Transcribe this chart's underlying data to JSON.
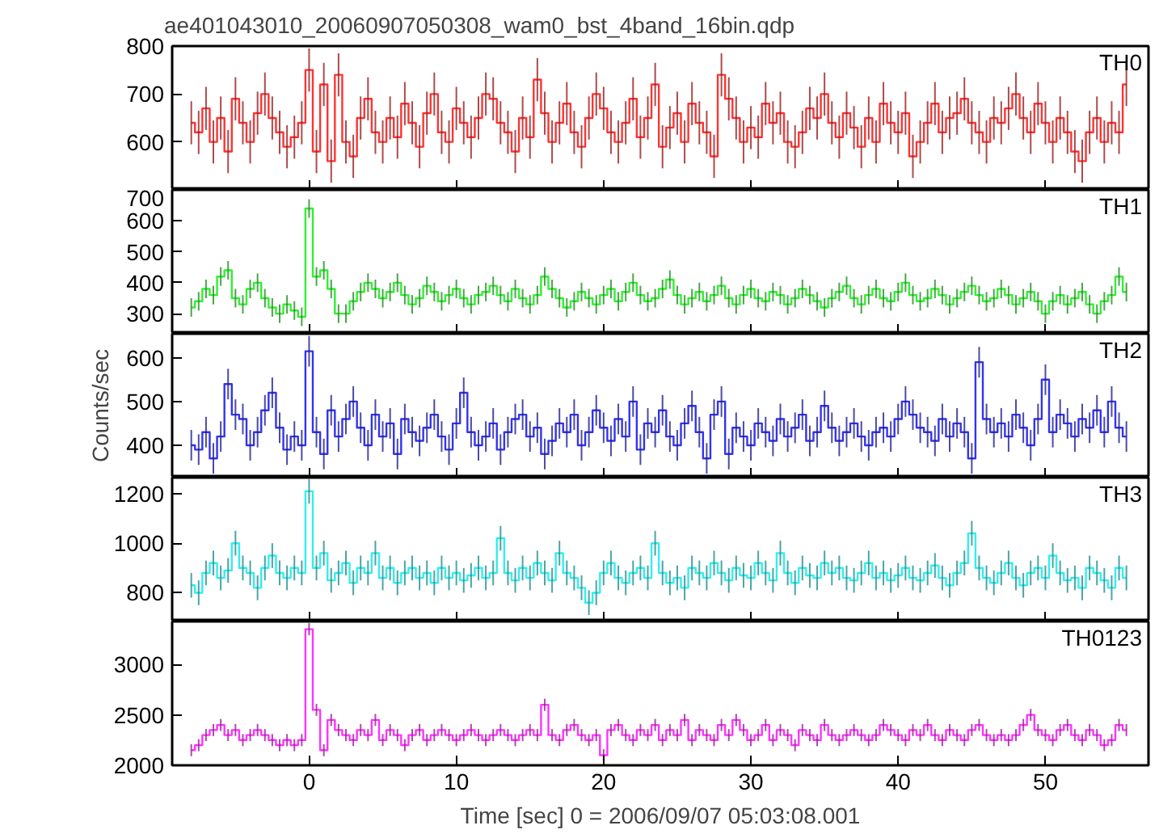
{
  "chart_data": [
    {
      "type": "step",
      "title": "ae401043010_20060907050308_wam0_bst_4band_16bin.qdp",
      "annotations": [
        "TH0"
      ],
      "color": "#ff3333",
      "xlim": [
        -9.3,
        57
      ],
      "xticks": [
        0,
        10,
        20,
        30,
        40,
        50
      ],
      "ylim": [
        500,
        800
      ],
      "yticks": [
        600,
        700,
        800
      ],
      "tick_labels": "y",
      "x": [
        -8,
        -7.5,
        -7,
        -6.5,
        -6,
        -5.5,
        -5,
        -4.5,
        -4,
        -3.5,
        -3,
        -2.5,
        -2,
        -1.5,
        -1,
        -0.5,
        0,
        0.5,
        1,
        1.5,
        2,
        2.5,
        3,
        3.5,
        4,
        4.5,
        5,
        5.5,
        6,
        6.5,
        7,
        7.5,
        8,
        8.5,
        9,
        9.5,
        10,
        10.5,
        11,
        11.5,
        12,
        12.5,
        13,
        13.5,
        14,
        14.5,
        15,
        15.5,
        16,
        16.5,
        17,
        17.5,
        18,
        18.5,
        19,
        19.5,
        20,
        20.5,
        21,
        21.5,
        22,
        22.5,
        23,
        23.5,
        24,
        24.5,
        25,
        25.5,
        26,
        26.5,
        27,
        27.5,
        28,
        28.5,
        29,
        29.5,
        30,
        30.5,
        31,
        31.5,
        32,
        32.5,
        33,
        33.5,
        34,
        34.5,
        35,
        35.5,
        36,
        36.5,
        37,
        37.5,
        38,
        38.5,
        39,
        39.5,
        40,
        40.5,
        41,
        41.5,
        42,
        42.5,
        43,
        43.5,
        44,
        44.5,
        45,
        45.5,
        46,
        46.5,
        47,
        47.5,
        48,
        48.5,
        49,
        49.5,
        50,
        50.5,
        51,
        51.5,
        52,
        52.5,
        53,
        53.5,
        54,
        54.5,
        55,
        55.5
      ],
      "values": [
        640,
        620,
        670,
        600,
        650,
        580,
        690,
        640,
        600,
        660,
        700,
        650,
        620,
        590,
        610,
        640,
        750,
        580,
        720,
        560,
        740,
        600,
        570,
        650,
        690,
        620,
        600,
        650,
        610,
        680,
        640,
        590,
        660,
        700,
        620,
        600,
        670,
        640,
        610,
        650,
        700,
        690,
        640,
        620,
        580,
        650,
        610,
        730,
        660,
        600,
        640,
        680,
        620,
        590,
        650,
        700,
        670,
        620,
        600,
        640,
        690,
        610,
        650,
        720,
        590,
        630,
        660,
        600,
        680,
        640,
        620,
        570,
        740,
        690,
        650,
        600,
        630,
        610,
        680,
        640,
        660,
        600,
        590,
        620,
        670,
        650,
        700,
        640,
        610,
        660,
        630,
        590,
        650,
        600,
        680,
        640,
        620,
        660,
        570,
        600,
        640,
        680,
        620,
        650,
        660,
        690,
        640,
        620,
        600,
        650,
        640,
        670,
        700,
        650,
        620,
        680,
        640,
        600,
        650,
        620,
        580,
        560,
        620,
        650,
        600,
        640,
        620,
        720
      ],
      "errors": [
        45,
        45,
        45,
        45,
        45,
        45,
        45,
        45,
        45,
        45,
        45,
        45,
        45,
        45,
        45,
        45,
        45,
        45,
        45,
        45,
        45,
        45,
        45,
        45,
        45,
        45,
        45,
        45,
        45,
        45,
        45,
        45,
        45,
        45,
        45,
        45,
        45,
        45,
        45,
        45,
        45,
        45,
        45,
        45,
        45,
        45,
        45,
        45,
        45,
        45,
        45,
        45,
        45,
        45,
        45,
        45,
        45,
        45,
        45,
        45,
        45,
        45,
        45,
        45,
        45,
        45,
        45,
        45,
        45,
        45,
        45,
        45,
        45,
        45,
        45,
        45,
        45,
        45,
        45,
        45,
        45,
        45,
        45,
        45,
        45,
        45,
        45,
        45,
        45,
        45,
        45,
        45,
        45,
        45,
        45,
        45,
        45,
        45,
        45,
        45,
        45,
        45,
        45,
        45,
        45,
        45,
        45,
        45,
        45,
        45,
        45,
        45,
        45,
        45,
        45,
        45,
        45,
        45,
        45,
        45,
        45,
        45,
        45,
        45,
        45,
        45,
        45,
        45
      ]
    },
    {
      "type": "step",
      "annotations": [
        "TH1"
      ],
      "color": "#33ee33",
      "xlim": [
        -9.3,
        57
      ],
      "xticks": [
        0,
        10,
        20,
        30,
        40,
        50
      ],
      "ylim": [
        235,
        700
      ],
      "yticks": [
        300,
        400,
        500,
        600,
        700
      ],
      "tick_labels": "y",
      "x": [
        -8,
        -7.5,
        -7,
        -6.5,
        -6,
        -5.5,
        -5,
        -4.5,
        -4,
        -3.5,
        -3,
        -2.5,
        -2,
        -1.5,
        -1,
        -0.5,
        0,
        0.5,
        1,
        1.5,
        2,
        2.5,
        3,
        3.5,
        4,
        4.5,
        5,
        5.5,
        6,
        6.5,
        7,
        7.5,
        8,
        8.5,
        9,
        9.5,
        10,
        10.5,
        11,
        11.5,
        12,
        12.5,
        13,
        13.5,
        14,
        14.5,
        15,
        15.5,
        16,
        16.5,
        17,
        17.5,
        18,
        18.5,
        19,
        19.5,
        20,
        20.5,
        21,
        21.5,
        22,
        22.5,
        23,
        23.5,
        24,
        24.5,
        25,
        25.5,
        26,
        26.5,
        27,
        27.5,
        28,
        28.5,
        29,
        29.5,
        30,
        30.5,
        31,
        31.5,
        32,
        32.5,
        33,
        33.5,
        34,
        34.5,
        35,
        35.5,
        36,
        36.5,
        37,
        37.5,
        38,
        38.5,
        39,
        39.5,
        40,
        40.5,
        41,
        41.5,
        42,
        42.5,
        43,
        43.5,
        44,
        44.5,
        45,
        45.5,
        46,
        46.5,
        47,
        47.5,
        48,
        48.5,
        49,
        49.5,
        50,
        50.5,
        51,
        51.5,
        52,
        52.5,
        53,
        53.5,
        54,
        54.5,
        55,
        55.5
      ],
      "values": [
        320,
        340,
        380,
        360,
        420,
        440,
        350,
        330,
        380,
        400,
        350,
        320,
        300,
        330,
        310,
        290,
        640,
        420,
        440,
        380,
        300,
        300,
        340,
        370,
        400,
        380,
        350,
        370,
        400,
        360,
        330,
        350,
        390,
        370,
        340,
        360,
        380,
        350,
        330,
        360,
        370,
        390,
        360,
        340,
        380,
        350,
        330,
        360,
        420,
        380,
        350,
        320,
        340,
        370,
        350,
        330,
        360,
        380,
        340,
        370,
        400,
        360,
        340,
        350,
        380,
        410,
        360,
        330,
        350,
        370,
        340,
        360,
        390,
        350,
        330,
        360,
        380,
        350,
        340,
        370,
        360,
        330,
        350,
        380,
        360,
        340,
        320,
        350,
        370,
        390,
        350,
        330,
        360,
        380,
        350,
        340,
        370,
        400,
        360,
        340,
        350,
        380,
        360,
        330,
        350,
        370,
        390,
        360,
        340,
        350,
        380,
        360,
        330,
        350,
        370,
        340,
        300,
        340,
        360,
        330,
        350,
        370,
        330,
        300,
        340,
        360,
        420,
        370
      ],
      "errors": [
        30,
        30,
        30,
        30,
        30,
        30,
        30,
        30,
        30,
        30,
        30,
        30,
        30,
        30,
        30,
        30,
        30,
        30,
        30,
        30,
        30,
        30,
        30,
        30,
        30,
        30,
        30,
        30,
        30,
        30,
        30,
        30,
        30,
        30,
        30,
        30,
        30,
        30,
        30,
        30,
        30,
        30,
        30,
        30,
        30,
        30,
        30,
        30,
        30,
        30,
        30,
        30,
        30,
        30,
        30,
        30,
        30,
        30,
        30,
        30,
        30,
        30,
        30,
        30,
        30,
        30,
        30,
        30,
        30,
        30,
        30,
        30,
        30,
        30,
        30,
        30,
        30,
        30,
        30,
        30,
        30,
        30,
        30,
        30,
        30,
        30,
        30,
        30,
        30,
        30,
        30,
        30,
        30,
        30,
        30,
        30,
        30,
        30,
        30,
        30,
        30,
        30,
        30,
        30,
        30,
        30,
        30,
        30,
        30,
        30,
        30,
        30,
        30,
        30,
        30,
        30,
        30,
        30,
        30,
        30,
        30,
        30,
        30,
        30,
        30,
        30,
        30,
        30
      ]
    },
    {
      "type": "step",
      "annotations": [
        "TH2"
      ],
      "ylabel": "Counts/sec",
      "color": "#3333ee",
      "xlim": [
        -9.3,
        57
      ],
      "xticks": [
        0,
        10,
        20,
        30,
        40,
        50
      ],
      "ylim": [
        326,
        655
      ],
      "yticks": [
        400,
        500,
        600
      ],
      "tick_labels": "y",
      "x": [
        -8,
        -7.5,
        -7,
        -6.5,
        -6,
        -5.5,
        -5,
        -4.5,
        -4,
        -3.5,
        -3,
        -2.5,
        -2,
        -1.5,
        -1,
        -0.5,
        0,
        0.5,
        1,
        1.5,
        2,
        2.5,
        3,
        3.5,
        4,
        4.5,
        5,
        5.5,
        6,
        6.5,
        7,
        7.5,
        8,
        8.5,
        9,
        9.5,
        10,
        10.5,
        11,
        11.5,
        12,
        12.5,
        13,
        13.5,
        14,
        14.5,
        15,
        15.5,
        16,
        16.5,
        17,
        17.5,
        18,
        18.5,
        19,
        19.5,
        20,
        20.5,
        21,
        21.5,
        22,
        22.5,
        23,
        23.5,
        24,
        24.5,
        25,
        25.5,
        26,
        26.5,
        27,
        27.5,
        28,
        28.5,
        29,
        29.5,
        30,
        30.5,
        31,
        31.5,
        32,
        32.5,
        33,
        33.5,
        34,
        34.5,
        35,
        35.5,
        36,
        36.5,
        37,
        37.5,
        38,
        38.5,
        39,
        39.5,
        40,
        40.5,
        41,
        41.5,
        42,
        42.5,
        43,
        43.5,
        44,
        44.5,
        45,
        45.5,
        46,
        46.5,
        47,
        47.5,
        48,
        48.5,
        49,
        49.5,
        50,
        50.5,
        51,
        51.5,
        52,
        52.5,
        53,
        53.5,
        54,
        54.5,
        55,
        55.5
      ],
      "values": [
        400,
        390,
        430,
        370,
        420,
        540,
        470,
        460,
        400,
        430,
        480,
        520,
        440,
        390,
        420,
        400,
        615,
        430,
        380,
        480,
        420,
        460,
        500,
        440,
        400,
        470,
        420,
        450,
        380,
        460,
        430,
        410,
        440,
        470,
        420,
        390,
        450,
        520,
        430,
        400,
        420,
        450,
        390,
        430,
        460,
        470,
        420,
        440,
        380,
        410,
        450,
        430,
        470,
        400,
        430,
        480,
        440,
        410,
        460,
        420,
        500,
        390,
        450,
        430,
        480,
        420,
        400,
        450,
        490,
        430,
        370,
        470,
        500,
        380,
        440,
        420,
        400,
        450,
        430,
        410,
        460,
        420,
        440,
        470,
        410,
        430,
        490,
        440,
        410,
        430,
        450,
        420,
        400,
        430,
        440,
        420,
        460,
        500,
        470,
        440,
        430,
        410,
        460,
        420,
        450,
        430,
        370,
        590,
        460,
        430,
        450,
        420,
        470,
        440,
        400,
        460,
        550,
        430,
        470,
        450,
        420,
        460,
        440,
        480,
        430,
        500,
        440,
        420
      ],
      "errors": [
        35,
        35,
        35,
        35,
        35,
        35,
        35,
        35,
        35,
        35,
        35,
        35,
        35,
        35,
        35,
        35,
        35,
        35,
        35,
        35,
        35,
        35,
        35,
        35,
        35,
        35,
        35,
        35,
        35,
        35,
        35,
        35,
        35,
        35,
        35,
        35,
        35,
        35,
        35,
        35,
        35,
        35,
        35,
        35,
        35,
        35,
        35,
        35,
        35,
        35,
        35,
        35,
        35,
        35,
        35,
        35,
        35,
        35,
        35,
        35,
        35,
        35,
        35,
        35,
        35,
        35,
        35,
        35,
        35,
        35,
        35,
        35,
        35,
        35,
        35,
        35,
        35,
        35,
        35,
        35,
        35,
        35,
        35,
        35,
        35,
        35,
        35,
        35,
        35,
        35,
        35,
        35,
        35,
        35,
        35,
        35,
        35,
        35,
        35,
        35,
        35,
        35,
        35,
        35,
        35,
        35,
        35,
        35,
        35,
        35,
        35,
        35,
        35,
        35,
        35,
        35,
        35,
        35,
        35,
        35,
        35,
        35,
        35,
        35,
        35,
        35,
        35,
        35
      ]
    },
    {
      "type": "step",
      "annotations": [
        "TH3"
      ],
      "color": "#33eeee",
      "xlim": [
        -9.3,
        57
      ],
      "xticks": [
        0,
        10,
        20,
        30,
        40,
        50
      ],
      "ylim": [
        684,
        1265
      ],
      "yticks": [
        800,
        1000,
        1200
      ],
      "tick_labels": "y",
      "x": [
        -8,
        -7.5,
        -7,
        -6.5,
        -6,
        -5.5,
        -5,
        -4.5,
        -4,
        -3.5,
        -3,
        -2.5,
        -2,
        -1.5,
        -1,
        -0.5,
        0,
        0.5,
        1,
        1.5,
        2,
        2.5,
        3,
        3.5,
        4,
        4.5,
        5,
        5.5,
        6,
        6.5,
        7,
        7.5,
        8,
        8.5,
        9,
        9.5,
        10,
        10.5,
        11,
        11.5,
        12,
        12.5,
        13,
        13.5,
        14,
        14.5,
        15,
        15.5,
        16,
        16.5,
        17,
        17.5,
        18,
        18.5,
        19,
        19.5,
        20,
        20.5,
        21,
        21.5,
        22,
        22.5,
        23,
        23.5,
        24,
        24.5,
        25,
        25.5,
        26,
        26.5,
        27,
        27.5,
        28,
        28.5,
        29,
        29.5,
        30,
        30.5,
        31,
        31.5,
        32,
        32.5,
        33,
        33.5,
        34,
        34.5,
        35,
        35.5,
        36,
        36.5,
        37,
        37.5,
        38,
        38.5,
        39,
        39.5,
        40,
        40.5,
        41,
        41.5,
        42,
        42.5,
        43,
        43.5,
        44,
        44.5,
        45,
        45.5,
        46,
        46.5,
        47,
        47.5,
        48,
        48.5,
        49,
        49.5,
        50,
        50.5,
        51,
        51.5,
        52,
        52.5,
        53,
        53.5,
        54,
        54.5,
        55,
        55.5
      ],
      "values": [
        830,
        800,
        880,
        920,
        860,
        890,
        1000,
        900,
        880,
        820,
        900,
        950,
        880,
        860,
        900,
        880,
        1210,
        900,
        960,
        850,
        880,
        920,
        840,
        900,
        880,
        960,
        860,
        900,
        840,
        880,
        900,
        860,
        880,
        840,
        900,
        860,
        880,
        850,
        870,
        900,
        860,
        880,
        1020,
        880,
        850,
        900,
        860,
        920,
        880,
        850,
        960,
        880,
        860,
        820,
        760,
        800,
        880,
        920,
        860,
        840,
        880,
        900,
        860,
        1000,
        880,
        840,
        860,
        820,
        900,
        880,
        860,
        920,
        880,
        850,
        900,
        870,
        860,
        920,
        880,
        850,
        960,
        880,
        840,
        900,
        870,
        860,
        920,
        880,
        900,
        860,
        850,
        880,
        920,
        860,
        880,
        850,
        870,
        900,
        860,
        850,
        880,
        910,
        860,
        830,
        880,
        920,
        1040,
        900,
        860,
        840,
        880,
        920,
        860,
        830,
        880,
        900,
        860,
        950,
        880,
        850,
        860,
        820,
        900,
        880,
        850,
        820,
        900,
        860
      ],
      "errors": [
        50,
        50,
        50,
        50,
        50,
        50,
        50,
        50,
        50,
        50,
        50,
        50,
        50,
        50,
        50,
        50,
        50,
        50,
        50,
        50,
        50,
        50,
        50,
        50,
        50,
        50,
        50,
        50,
        50,
        50,
        50,
        50,
        50,
        50,
        50,
        50,
        50,
        50,
        50,
        50,
        50,
        50,
        50,
        50,
        50,
        50,
        50,
        50,
        50,
        50,
        50,
        50,
        50,
        50,
        50,
        50,
        50,
        50,
        50,
        50,
        50,
        50,
        50,
        50,
        50,
        50,
        50,
        50,
        50,
        50,
        50,
        50,
        50,
        50,
        50,
        50,
        50,
        50,
        50,
        50,
        50,
        50,
        50,
        50,
        50,
        50,
        50,
        50,
        50,
        50,
        50,
        50,
        50,
        50,
        50,
        50,
        50,
        50,
        50,
        50,
        50,
        50,
        50,
        50,
        50,
        50,
        50,
        50,
        50,
        50,
        50,
        50,
        50,
        50,
        50,
        50,
        50,
        50,
        50,
        50,
        50,
        50,
        50,
        50,
        50,
        50,
        50,
        50
      ]
    },
    {
      "type": "step",
      "annotations": [
        "TH0123"
      ],
      "xlabel": "Time [sec] 0 = 2006/09/07 05:03:08.001",
      "color": "#ff33ff",
      "xlim": [
        -9.3,
        57
      ],
      "xticks": [
        0,
        10,
        20,
        30,
        40,
        50
      ],
      "ylim": [
        2000,
        3427
      ],
      "yticks": [
        2000,
        2500,
        3000
      ],
      "x": [
        -8,
        -7.5,
        -7,
        -6.5,
        -6,
        -5.5,
        -5,
        -4.5,
        -4,
        -3.5,
        -3,
        -2.5,
        -2,
        -1.5,
        -1,
        -0.5,
        0,
        0.5,
        1,
        1.5,
        2,
        2.5,
        3,
        3.5,
        4,
        4.5,
        5,
        5.5,
        6,
        6.5,
        7,
        7.5,
        8,
        8.5,
        9,
        9.5,
        10,
        10.5,
        11,
        11.5,
        12,
        12.5,
        13,
        13.5,
        14,
        14.5,
        15,
        15.5,
        16,
        16.5,
        17,
        17.5,
        18,
        18.5,
        19,
        19.5,
        20,
        20.5,
        21,
        21.5,
        22,
        22.5,
        23,
        23.5,
        24,
        24.5,
        25,
        25.5,
        26,
        26.5,
        27,
        27.5,
        28,
        28.5,
        29,
        29.5,
        30,
        30.5,
        31,
        31.5,
        32,
        32.5,
        33,
        33.5,
        34,
        34.5,
        35,
        35.5,
        36,
        36.5,
        37,
        37.5,
        38,
        38.5,
        39,
        39.5,
        40,
        40.5,
        41,
        41.5,
        42,
        42.5,
        43,
        43.5,
        44,
        44.5,
        45,
        45.5,
        46,
        46.5,
        47,
        47.5,
        48,
        48.5,
        49,
        49.5,
        50,
        50.5,
        51,
        51.5,
        52,
        52.5,
        53,
        53.5,
        54,
        54.5,
        55,
        55.5
      ],
      "values": [
        2150,
        2200,
        2300,
        2350,
        2400,
        2300,
        2350,
        2250,
        2300,
        2350,
        2300,
        2250,
        2200,
        2250,
        2200,
        2250,
        3350,
        2550,
        2150,
        2450,
        2350,
        2300,
        2250,
        2350,
        2300,
        2450,
        2250,
        2350,
        2300,
        2200,
        2300,
        2350,
        2250,
        2300,
        2350,
        2300,
        2250,
        2300,
        2350,
        2300,
        2250,
        2300,
        2350,
        2300,
        2250,
        2300,
        2350,
        2300,
        2600,
        2300,
        2250,
        2350,
        2400,
        2300,
        2250,
        2300,
        2100,
        2350,
        2400,
        2300,
        2250,
        2350,
        2300,
        2400,
        2250,
        2350,
        2300,
        2450,
        2250,
        2350,
        2300,
        2250,
        2400,
        2300,
        2450,
        2350,
        2250,
        2300,
        2400,
        2250,
        2350,
        2300,
        2200,
        2350,
        2300,
        2250,
        2400,
        2300,
        2250,
        2300,
        2350,
        2300,
        2250,
        2300,
        2400,
        2350,
        2300,
        2250,
        2350,
        2300,
        2400,
        2300,
        2250,
        2350,
        2300,
        2250,
        2350,
        2400,
        2300,
        2250,
        2300,
        2250,
        2300,
        2400,
        2500,
        2350,
        2300,
        2250,
        2350,
        2400,
        2300,
        2250,
        2350,
        2300,
        2200,
        2250,
        2400,
        2350
      ],
      "errors": [
        60,
        60,
        60,
        60,
        60,
        60,
        60,
        60,
        60,
        60,
        60,
        60,
        60,
        60,
        60,
        60,
        60,
        60,
        60,
        60,
        60,
        60,
        60,
        60,
        60,
        60,
        60,
        60,
        60,
        60,
        60,
        60,
        60,
        60,
        60,
        60,
        60,
        60,
        60,
        60,
        60,
        60,
        60,
        60,
        60,
        60,
        60,
        60,
        60,
        60,
        60,
        60,
        60,
        60,
        60,
        60,
        60,
        60,
        60,
        60,
        60,
        60,
        60,
        60,
        60,
        60,
        60,
        60,
        60,
        60,
        60,
        60,
        60,
        60,
        60,
        60,
        60,
        60,
        60,
        60,
        60,
        60,
        60,
        60,
        60,
        60,
        60,
        60,
        60,
        60,
        60,
        60,
        60,
        60,
        60,
        60,
        60,
        60,
        60,
        60,
        60,
        60,
        60,
        60,
        60,
        60,
        60,
        60,
        60,
        60,
        60,
        60,
        60,
        60,
        60,
        60,
        60,
        60,
        60,
        60,
        60,
        60,
        60,
        60,
        60,
        60,
        60,
        60
      ]
    }
  ]
}
